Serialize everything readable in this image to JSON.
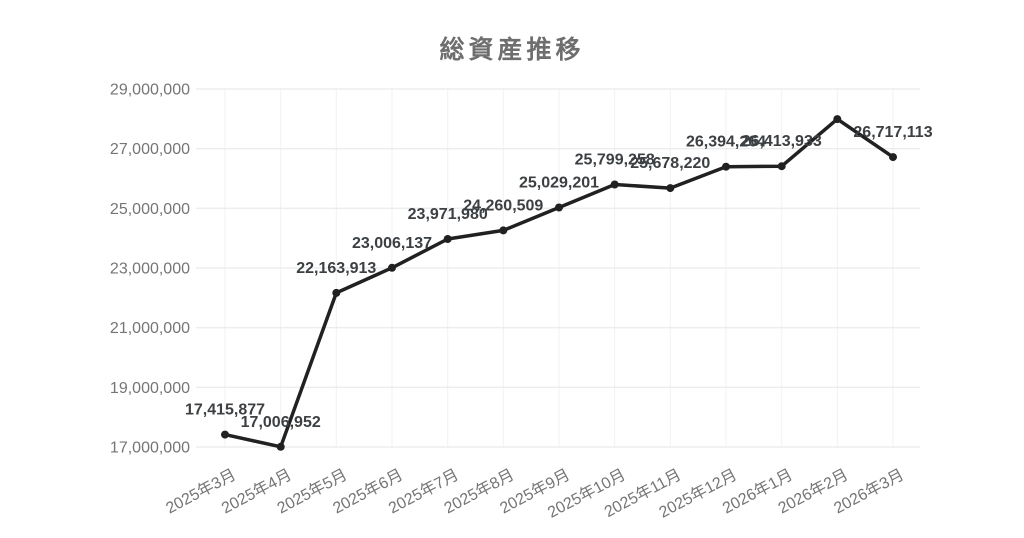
{
  "chart_data": {
    "type": "line",
    "title": "総資産推移",
    "xlabel": "",
    "ylabel": "",
    "legend": "none",
    "grid": true,
    "categories": [
      "2025年3月",
      "2025年4月",
      "2025年5月",
      "2025年6月",
      "2025年7月",
      "2025年8月",
      "2025年9月",
      "2025年10月",
      "2025年11月",
      "2025年12月",
      "2026年1月",
      "2026年2月",
      "2026年3月"
    ],
    "values": [
      17415877,
      17006952,
      22163913,
      23006137,
      23971980,
      24260509,
      25029201,
      25799258,
      25678220,
      26394264,
      26413933,
      27990000,
      26717113
    ],
    "point_labels": [
      "17,415,877",
      "17,006,952",
      "22,163,913",
      "23,006,137",
      "23,971,980",
      "24,260,509",
      "25,029,201",
      "25,799,258",
      "25,678,220",
      "26,394,264",
      "26,413,933",
      "",
      "26,717,113"
    ],
    "ylim": [
      17000000,
      29000000
    ],
    "ytick_step": 2000000,
    "ytick_labels": [
      "17,000,000",
      "19,000,000",
      "21,000,000",
      "23,000,000",
      "25,000,000",
      "27,000,000",
      "29,000,000"
    ],
    "colors": {
      "line": "#212121",
      "point": "#212121",
      "annotation": "#3c4043",
      "axis_tick": "#757575",
      "title": "#6e6e6e",
      "gridline": "#e6e6e6",
      "minor_gridline": "#f2f2f2",
      "background": "#ffffff"
    }
  }
}
